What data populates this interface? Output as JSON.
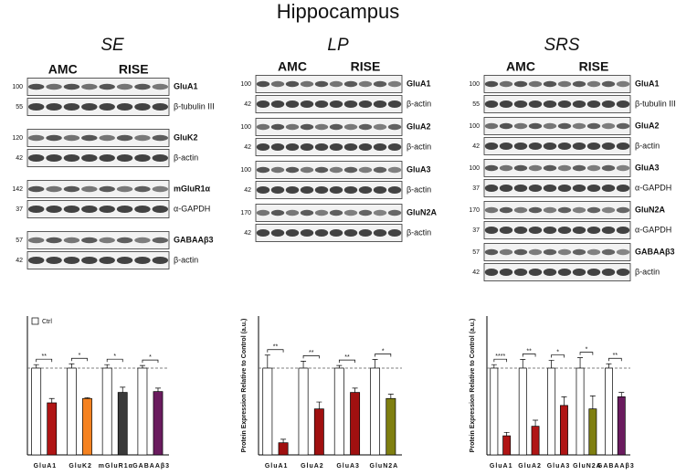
{
  "title": "Hippocampus",
  "panels": [
    {
      "title": "SE",
      "groups": [
        "AMC",
        "RISE"
      ],
      "rows": [
        {
          "marker": 100,
          "label": "GluA1"
        },
        {
          "marker": 55,
          "label": "β-tubulin III"
        },
        {
          "marker": 120,
          "label": "GluK2"
        },
        {
          "marker": 42,
          "label": "β-actin"
        },
        {
          "marker": 142,
          "label": "mGluR1α"
        },
        {
          "marker": 37,
          "label": "α-GAPDH"
        },
        {
          "marker": 57,
          "label": "GABAAβ3"
        },
        {
          "marker": 42,
          "label": "β-actin"
        }
      ]
    },
    {
      "title": "LP",
      "groups": [
        "AMC",
        "RISE"
      ],
      "rows": [
        {
          "marker": 100,
          "label": "GluA1"
        },
        {
          "marker": 42,
          "label": "β-actin"
        },
        {
          "marker": 100,
          "label": "GluA2"
        },
        {
          "marker": 42,
          "label": "β-actin"
        },
        {
          "marker": 100,
          "label": "GluA3"
        },
        {
          "marker": 42,
          "label": "β-actin"
        },
        {
          "marker": 170,
          "label": "GluN2A"
        },
        {
          "marker": 42,
          "label": "β-actin"
        }
      ]
    },
    {
      "title": "SRS",
      "groups": [
        "AMC",
        "RISE"
      ],
      "rows": [
        {
          "marker": 100,
          "label": "GluA1"
        },
        {
          "marker": 55,
          "label": "β-tubulin III"
        },
        {
          "marker": 100,
          "label": "GluA2"
        },
        {
          "marker": 42,
          "label": "β-actin"
        },
        {
          "marker": 100,
          "label": "GluA3"
        },
        {
          "marker": 37,
          "label": "α-GAPDH"
        },
        {
          "marker": 170,
          "label": "GluN2A"
        },
        {
          "marker": 37,
          "label": "α-GAPDH"
        },
        {
          "marker": 57,
          "label": "GABAAβ3"
        },
        {
          "marker": 42,
          "label": "β-actin"
        }
      ]
    }
  ],
  "chart_data": [
    {
      "type": "bar",
      "categories": [
        "GluA1",
        "GluK2",
        "mGluR1α",
        "GABAAβ3"
      ],
      "ylim": [
        0,
        1.6
      ],
      "reference_line": 1,
      "legend": "upper left",
      "series": [
        {
          "name": "Ctrl",
          "color": "#ffffff",
          "values": [
            1,
            1,
            1,
            1
          ],
          "errors": [
            0.04,
            0.05,
            0.04,
            0.03
          ]
        },
        {
          "colors": [
            "#b01515",
            "#f58220",
            "#3a3a3a",
            "#6a1b5e"
          ],
          "values": [
            0.6,
            0.65,
            0.72,
            0.73
          ],
          "errors": [
            0.05,
            0.01,
            0.06,
            0.04
          ]
        }
      ],
      "annotations": [
        "**",
        "*",
        "*",
        "*"
      ]
    },
    {
      "type": "bar",
      "ylabel": "Protein Expression Relative to Control (a.u.)",
      "categories": [
        "GluA1",
        "GluA2",
        "GluA3",
        "GluN2A"
      ],
      "ylim": [
        0,
        1.6
      ],
      "reference_line": 1,
      "series": [
        {
          "color": "#ffffff",
          "values": [
            1,
            1,
            1,
            1
          ],
          "errors": [
            0.15,
            0.08,
            0.03,
            0.1
          ]
        },
        {
          "colors": [
            "#a01010",
            "#a01010",
            "#a01010",
            "#7f7f10"
          ],
          "values": [
            0.14,
            0.53,
            0.72,
            0.65
          ],
          "errors": [
            0.04,
            0.08,
            0.05,
            0.05
          ]
        }
      ],
      "annotations": [
        "**",
        "**",
        "**",
        "*"
      ]
    },
    {
      "type": "bar",
      "ylabel": "Protein Expression Relative to Control (a.u.)",
      "categories": [
        "GluA1",
        "GluA2",
        "GluA3",
        "GluN2A",
        "GABAAβ3"
      ],
      "ylim": [
        0,
        1.6
      ],
      "reference_line": 1,
      "series": [
        {
          "color": "#ffffff",
          "values": [
            1,
            1,
            1,
            1,
            1
          ],
          "errors": [
            0.04,
            0.1,
            0.09,
            0.12,
            0.05
          ]
        },
        {
          "colors": [
            "#b01515",
            "#b01515",
            "#b01515",
            "#7f7f10",
            "#6a1b5e"
          ],
          "values": [
            0.22,
            0.33,
            0.57,
            0.53,
            0.67
          ],
          "errors": [
            0.04,
            0.07,
            0.1,
            0.15,
            0.05
          ]
        }
      ],
      "annotations": [
        "****",
        "**",
        "*",
        "*",
        "**"
      ]
    }
  ]
}
